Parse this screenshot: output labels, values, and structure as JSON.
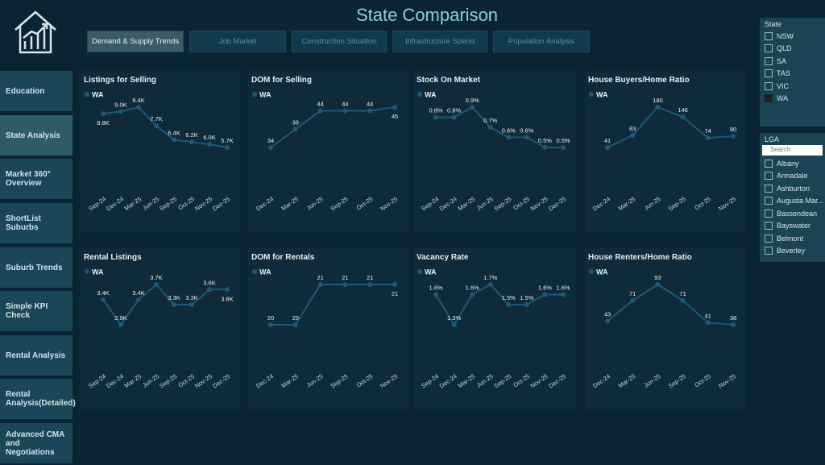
{
  "header": {
    "title": "State Comparison"
  },
  "tabs": [
    {
      "label": "Demand & Supply Trends",
      "selected": true
    },
    {
      "label": "Job Market",
      "selected": false
    },
    {
      "label": "Construction Situation",
      "selected": false
    },
    {
      "label": "Infrastructure Spend",
      "selected": false
    },
    {
      "label": "Population Analysis",
      "selected": false
    }
  ],
  "nav": [
    {
      "label": "Education",
      "selected": false
    },
    {
      "label": "State Analysis",
      "selected": true
    },
    {
      "label": "Market 360° Overview",
      "selected": false
    },
    {
      "label": "ShortList Suburbs",
      "selected": false
    },
    {
      "label": "Suburb Trends",
      "selected": false
    },
    {
      "label": "Simple KPI Check",
      "selected": false
    },
    {
      "label": "Rental Analysis",
      "selected": false
    },
    {
      "label": "Rental Analysis(Detailed)",
      "selected": false
    },
    {
      "label": "Advanced CMA and Negotiations",
      "selected": false
    }
  ],
  "slicers": {
    "state": {
      "title": "State",
      "items": [
        {
          "label": "NSW",
          "checked": false
        },
        {
          "label": "QLD",
          "checked": false
        },
        {
          "label": "SA",
          "checked": false
        },
        {
          "label": "TAS",
          "checked": false
        },
        {
          "label": "VIC",
          "checked": false
        },
        {
          "label": "WA",
          "checked": true
        }
      ]
    },
    "lga": {
      "title": "LGA",
      "search": "Search",
      "items": [
        {
          "label": "Albany",
          "checked": false
        },
        {
          "label": "Armadale",
          "checked": false
        },
        {
          "label": "Ashburton",
          "checked": false
        },
        {
          "label": "Augusta Mar...",
          "checked": false
        },
        {
          "label": "Bassendean",
          "checked": false
        },
        {
          "label": "Bayswater",
          "checked": false
        },
        {
          "label": "Belmont",
          "checked": false
        },
        {
          "label": "Beverley",
          "checked": false
        }
      ]
    }
  },
  "chart_data": [
    {
      "type": "line",
      "title": "Listings for Selling",
      "categories": [
        "Sep-24",
        "Dec-24",
        "Mar-25",
        "Jun-25",
        "Sep-25",
        "Oct-25",
        "Nov-25",
        "Dec-25"
      ],
      "series": [
        {
          "name": "WA",
          "color": "#1d5878",
          "values": [
            8800,
            9000,
            9400,
            7700,
            6400,
            6200,
            6000,
            5700
          ],
          "value_labels": [
            "8.8K",
            "9.0K",
            "9.4K",
            "7.7K",
            "6.4K",
            "6.2K",
            "6.0K",
            "5.7K"
          ]
        }
      ]
    },
    {
      "type": "line",
      "title": "DOM for Selling",
      "categories": [
        "Dec-24",
        "Mar-25",
        "Jun-25",
        "Sep-25",
        "Oct-25",
        "Nov-25"
      ],
      "series": [
        {
          "name": "WA",
          "color": "#1d5878",
          "values": [
            34,
            39,
            44,
            44,
            44,
            45
          ]
        }
      ]
    },
    {
      "type": "line",
      "title": "Stock On Market",
      "categories": [
        "Sep-24",
        "Dec-24",
        "Mar-25",
        "Jun-25",
        "Sep-25",
        "Oct-25",
        "Nov-25",
        "Dec-25"
      ],
      "series": [
        {
          "name": "WA",
          "color": "#1d5878",
          "values": [
            0.8,
            0.8,
            0.9,
            0.7,
            0.6,
            0.6,
            0.5,
            0.5
          ],
          "value_labels": [
            "0.8%",
            "0.8%",
            "0.9%",
            "0.7%",
            "0.6%",
            "0.6%",
            "0.5%",
            "0.5%"
          ]
        }
      ]
    },
    {
      "type": "line",
      "title": "House Buyers/Home Ratio",
      "categories": [
        "Dec-24",
        "Mar-25",
        "Jun-25",
        "Sep-25",
        "Oct-25",
        "Nov-25"
      ],
      "series": [
        {
          "name": "WA",
          "color": "#1d5878",
          "values": [
            41,
            83,
            180,
            146,
            74,
            80
          ]
        }
      ]
    },
    {
      "type": "line",
      "title": "Rental Listings",
      "categories": [
        "Sep-24",
        "Dec-24",
        "Mar-25",
        "Jun-25",
        "Sep-25",
        "Oct-25",
        "Nov-25",
        "Dec-25"
      ],
      "series": [
        {
          "name": "WA",
          "color": "#1d5878",
          "values": [
            3400,
            2900,
            3400,
            3700,
            3300,
            3300,
            3600,
            3600
          ],
          "value_labels": [
            "3.4K",
            "2.9K",
            "3.4K",
            "3.7K",
            "3.3K",
            "3.3K",
            "3.6K",
            "3.6K"
          ]
        }
      ]
    },
    {
      "type": "line",
      "title": "DOM for Rentals",
      "categories": [
        "Dec-24",
        "Mar-25",
        "Jun-25",
        "Sep-25",
        "Oct-25",
        "Nov-25"
      ],
      "series": [
        {
          "name": "WA",
          "color": "#1d5878",
          "values": [
            20,
            20,
            21,
            21,
            21,
            21
          ]
        }
      ]
    },
    {
      "type": "line",
      "title": "Vacancy Rate",
      "categories": [
        "Sep-24",
        "Dec-24",
        "Mar-25",
        "Jun-25",
        "Sep-25",
        "Oct-25",
        "Nov-25",
        "Dec-25"
      ],
      "series": [
        {
          "name": "WA",
          "color": "#1d5878",
          "values": [
            1.6,
            1.3,
            1.6,
            1.7,
            1.5,
            1.5,
            1.6,
            1.6
          ],
          "value_labels": [
            "1.6%",
            "1.3%",
            "1.6%",
            "1.7%",
            "1.5%",
            "1.5%",
            "1.6%",
            "1.6%"
          ]
        }
      ]
    },
    {
      "type": "line",
      "title": "House Renters/Home Ratio",
      "categories": [
        "Dec-24",
        "Mar-25",
        "Jun-25",
        "Sep-25",
        "Oct-25",
        "Nov-25"
      ],
      "series": [
        {
          "name": "WA",
          "color": "#1d5878",
          "values": [
            43,
            71,
            93,
            71,
            41,
            38
          ]
        }
      ]
    }
  ]
}
